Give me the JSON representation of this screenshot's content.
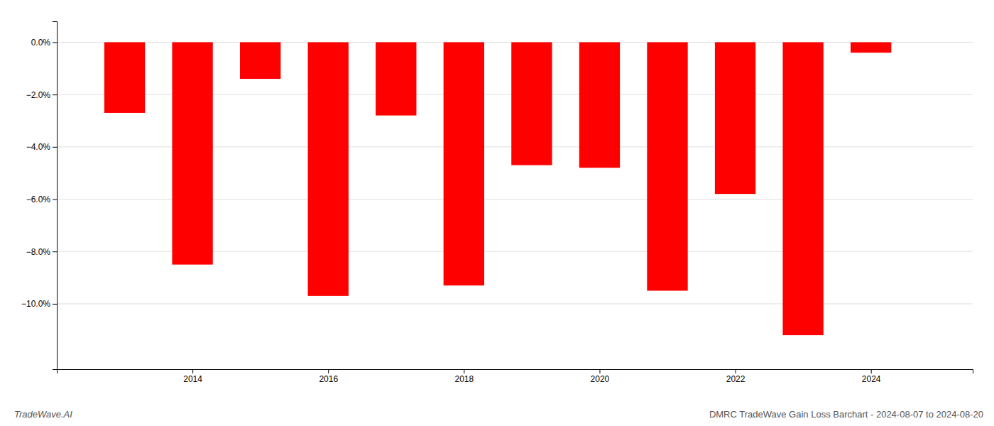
{
  "chart_data": {
    "type": "bar",
    "title": "DMRC TradeWave Gain Loss Barchart - 2024-08-07 to 2024-08-20",
    "subtitle": "TradeWave.AI",
    "x": [
      2013,
      2014,
      2015,
      2016,
      2017,
      2018,
      2019,
      2020,
      2021,
      2022,
      2023,
      2024
    ],
    "values": [
      -2.7,
      -8.5,
      -1.4,
      -9.7,
      -2.8,
      -9.3,
      -4.7,
      -4.8,
      -9.5,
      -5.8,
      -11.2,
      -0.4
    ],
    "color": "#ff0000",
    "xlim": [
      2012.0,
      2025.5
    ],
    "xticks": [
      2014,
      2016,
      2018,
      2020,
      2022,
      2024
    ],
    "ylim": [
      -12.5,
      0.8
    ],
    "yticks": [
      {
        "value": 0.0,
        "label": "0.0%"
      },
      {
        "value": -2.0,
        "label": "−2.0%"
      },
      {
        "value": -4.0,
        "label": "−4.0%"
      },
      {
        "value": -6.0,
        "label": "−6.0%"
      },
      {
        "value": -8.0,
        "label": "−8.0%"
      },
      {
        "value": -10.0,
        "label": "−10.0%"
      }
    ],
    "grid": true
  }
}
